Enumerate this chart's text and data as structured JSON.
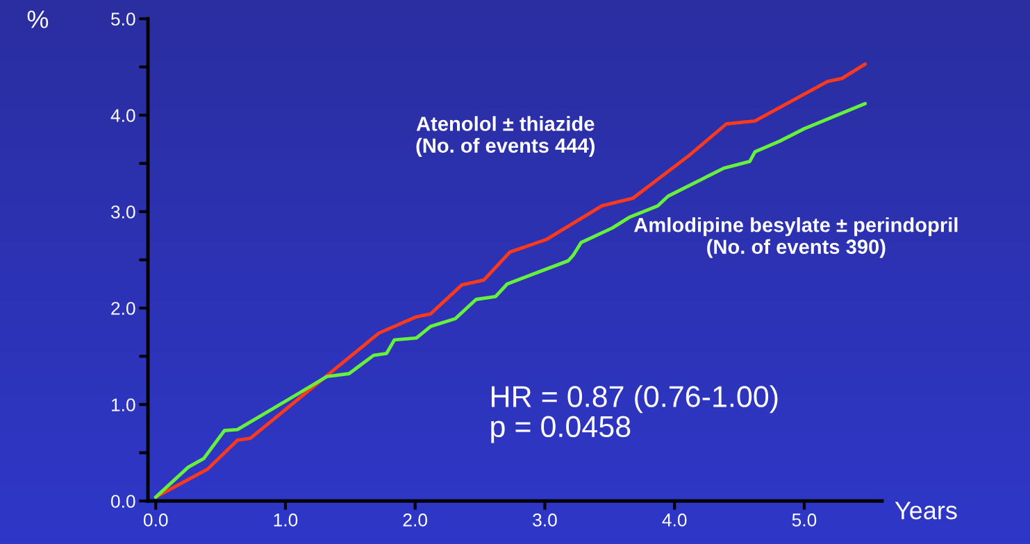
{
  "chart_data": {
    "type": "line",
    "xlabel": "Years",
    "ylabel": "%",
    "xlim": [
      -0.06,
      5.6
    ],
    "ylim": [
      0,
      5.0
    ],
    "xticks": [
      {
        "value": 0,
        "label": "0.0"
      },
      {
        "value": 1,
        "label": "1.0"
      },
      {
        "value": 2,
        "label": "2.0"
      },
      {
        "value": 3,
        "label": "3.0"
      },
      {
        "value": 4,
        "label": "4.0"
      },
      {
        "value": 5,
        "label": "5.0"
      }
    ],
    "yticks": [
      {
        "value": 0,
        "label": "0.0"
      },
      {
        "value": 0.5,
        "label": null
      },
      {
        "value": 1,
        "label": "1.0"
      },
      {
        "value": 1.5,
        "label": null
      },
      {
        "value": 2,
        "label": "2.0"
      },
      {
        "value": 2.5,
        "label": null
      },
      {
        "value": 3,
        "label": "3.0"
      },
      {
        "value": 3.5,
        "label": null
      },
      {
        "value": 4,
        "label": "4.0"
      },
      {
        "value": 4.5,
        "label": null
      },
      {
        "value": 5,
        "label": "5.0"
      }
    ],
    "grid": false,
    "legend": false,
    "marker": "none",
    "line_style": "solid",
    "series": [
      {
        "name": "Atenolol ± thiazide\n(No. of events 444)",
        "color": "#ff3a1a",
        "x": [
          0,
          0.4,
          0.63,
          0.73,
          1.32,
          1.72,
          2.01,
          2.12,
          2.36,
          2.53,
          2.73,
          3.01,
          3.44,
          3.68,
          4.11,
          4.4,
          4.62,
          5.18,
          5.29,
          5.47
        ],
        "values": [
          0.04,
          0.33,
          0.63,
          0.65,
          1.3,
          1.74,
          1.91,
          1.94,
          2.24,
          2.29,
          2.58,
          2.71,
          3.06,
          3.14,
          3.58,
          3.91,
          3.94,
          4.35,
          4.38,
          4.53
        ]
      },
      {
        "name": "Amlodipine besylate ± perindopril\n(No. of events 390)",
        "color": "#66f23a",
        "x": [
          0,
          0.25,
          0.37,
          0.53,
          0.63,
          1.07,
          1.32,
          1.49,
          1.68,
          1.78,
          1.84,
          2.01,
          2.12,
          2.31,
          2.47,
          2.62,
          2.71,
          3.18,
          3.22,
          3.28,
          3.52,
          3.65,
          3.87,
          3.95,
          4.38,
          4.58,
          4.62,
          4.81,
          5.0,
          5.47
        ],
        "values": [
          0.04,
          0.35,
          0.44,
          0.73,
          0.74,
          1.09,
          1.29,
          1.32,
          1.51,
          1.53,
          1.67,
          1.69,
          1.81,
          1.89,
          2.09,
          2.12,
          2.25,
          2.49,
          2.55,
          2.68,
          2.83,
          2.94,
          3.06,
          3.16,
          3.45,
          3.52,
          3.62,
          3.73,
          3.86,
          4.12
        ]
      }
    ],
    "annotations": [
      "HR = 0.87 (0.76-1.00)\np = 0.0458"
    ]
  }
}
